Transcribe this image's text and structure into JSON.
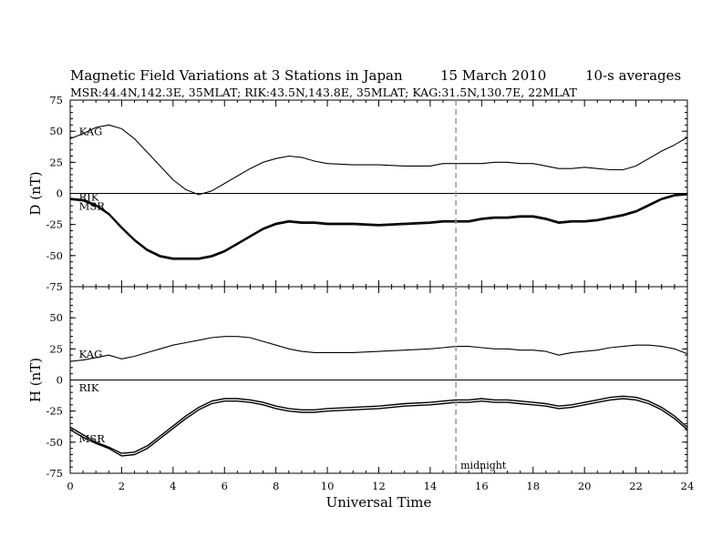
{
  "title": {
    "main": "Magnetic Field Variations at 3 Stations in Japan",
    "date": "15 March 2010",
    "averaging": "10-s averages",
    "stations": "MSR:44.4N,142.3E, 35MLAT; RIK:43.5N,143.8E, 35MLAT; KAG:31.5N,130.7E, 22MLAT"
  },
  "annotation": {
    "text": "midnight",
    "x": 15
  },
  "chart_data": [
    {
      "type": "line",
      "panel": "D",
      "ylabel": "D (nT)",
      "xlabel": "",
      "xlim": [
        0,
        24
      ],
      "ylim": [
        -75,
        75
      ],
      "yticks": [
        -75,
        -50,
        -25,
        0,
        25,
        50,
        75
      ],
      "zero_line": true,
      "station_labels": [
        {
          "text": "KAG",
          "x": 0.2,
          "y": 47
        },
        {
          "text": "RIK",
          "x": 0.2,
          "y": -6
        },
        {
          "text": "MSR",
          "x": 0.2,
          "y": -13
        }
      ],
      "series": [
        {
          "name": "KAG",
          "x": [
            0,
            0.5,
            1,
            1.5,
            2,
            2.5,
            3,
            3.5,
            4,
            4.5,
            5,
            5.5,
            6,
            6.5,
            7,
            7.5,
            8,
            8.5,
            9,
            9.5,
            10,
            11,
            12,
            13,
            14,
            14.5,
            15,
            15.5,
            16,
            16.5,
            17,
            17.5,
            18,
            18.5,
            19,
            19.5,
            20,
            20.5,
            21,
            21.5,
            22,
            22.5,
            23,
            23.5,
            24
          ],
          "y": [
            44,
            48,
            53,
            55,
            52,
            44,
            33,
            22,
            11,
            3,
            -1,
            2,
            8,
            14,
            20,
            25,
            28,
            30,
            29,
            26,
            24,
            23,
            23,
            22,
            22,
            24,
            24,
            24,
            24,
            25,
            25,
            24,
            24,
            22,
            20,
            20,
            21,
            20,
            19,
            19,
            22,
            28,
            34,
            39,
            45
          ]
        },
        {
          "name": "RIK",
          "x": [
            0,
            0.5,
            1,
            1.5,
            2,
            2.5,
            3,
            3.5,
            4,
            4.5,
            5,
            5.5,
            6,
            6.5,
            7,
            7.5,
            8,
            8.5,
            9,
            9.5,
            10,
            11,
            12,
            13,
            14,
            14.5,
            15,
            15.5,
            16,
            16.5,
            17,
            17.5,
            18,
            18.5,
            19,
            19.5,
            20,
            20.5,
            21,
            21.5,
            22,
            22.5,
            23,
            23.5,
            24
          ],
          "y": [
            -4,
            -5,
            -9,
            -16,
            -27,
            -37,
            -45,
            -50,
            -52,
            -52,
            -52,
            -50,
            -46,
            -40,
            -34,
            -28,
            -24,
            -22,
            -23,
            -23,
            -24,
            -24,
            -25,
            -24,
            -23,
            -22,
            -22,
            -22,
            -20,
            -19,
            -19,
            -18,
            -18,
            -20,
            -23,
            -22,
            -22,
            -21,
            -19,
            -17,
            -14,
            -9,
            -4,
            -1,
            0
          ]
        },
        {
          "name": "MSR",
          "x": [
            0,
            0.5,
            1,
            1.5,
            2,
            2.5,
            3,
            3.5,
            4,
            4.5,
            5,
            5.5,
            6,
            6.5,
            7,
            7.5,
            8,
            8.5,
            9,
            9.5,
            10,
            11,
            12,
            13,
            14,
            14.5,
            15,
            15.5,
            16,
            16.5,
            17,
            17.5,
            18,
            18.5,
            19,
            19.5,
            20,
            20.5,
            21,
            21.5,
            22,
            22.5,
            23,
            23.5,
            24
          ],
          "y": [
            -5,
            -6,
            -10,
            -17,
            -28,
            -38,
            -46,
            -51,
            -53,
            -53,
            -53,
            -51,
            -47,
            -41,
            -35,
            -29,
            -25,
            -23,
            -24,
            -24,
            -25,
            -25,
            -26,
            -25,
            -24,
            -23,
            -23,
            -23,
            -21,
            -20,
            -20,
            -19,
            -19,
            -21,
            -24,
            -23,
            -23,
            -22,
            -20,
            -18,
            -15,
            -10,
            -5,
            -2,
            -1
          ]
        }
      ]
    },
    {
      "type": "line",
      "panel": "H",
      "ylabel": "H (nT)",
      "xlabel": "Universal Time",
      "xlim": [
        0,
        24
      ],
      "ylim": [
        -75,
        75
      ],
      "yticks": [
        -75,
        -50,
        -25,
        0,
        25,
        50,
        75
      ],
      "xticks": [
        0,
        2,
        4,
        6,
        8,
        10,
        12,
        14,
        16,
        18,
        20,
        22,
        24
      ],
      "zero_line": true,
      "station_labels": [
        {
          "text": "KAG",
          "x": 0.2,
          "y": 18
        },
        {
          "text": "RIK",
          "x": 0.2,
          "y": -9
        },
        {
          "text": "MSR",
          "x": 0.2,
          "y": -50
        }
      ],
      "series": [
        {
          "name": "KAG",
          "x": [
            0,
            0.5,
            1,
            1.5,
            2,
            2.5,
            3,
            3.5,
            4,
            4.5,
            5,
            5.5,
            6,
            6.5,
            7,
            7.5,
            8,
            8.5,
            9,
            9.5,
            10,
            11,
            12,
            13,
            14,
            14.5,
            15,
            15.5,
            16,
            16.5,
            17,
            17.5,
            18,
            18.5,
            19,
            19.5,
            20,
            20.5,
            21,
            21.5,
            22,
            22.5,
            23,
            23.5,
            24
          ],
          "y": [
            15,
            16,
            18,
            20,
            17,
            19,
            22,
            25,
            28,
            30,
            32,
            34,
            35,
            35,
            34,
            31,
            28,
            25,
            23,
            22,
            22,
            22,
            23,
            24,
            25,
            26,
            27,
            27,
            26,
            25,
            25,
            24,
            24,
            23,
            20,
            22,
            23,
            24,
            26,
            27,
            28,
            28,
            27,
            25,
            21
          ]
        },
        {
          "name": "RIK",
          "x": [
            0,
            0.5,
            1,
            1.5,
            2,
            2.5,
            3,
            3.5,
            4,
            4.5,
            5,
            5.5,
            6,
            6.5,
            7,
            7.5,
            8,
            8.5,
            9,
            9.5,
            10,
            11,
            12,
            13,
            14,
            14.5,
            15,
            15.5,
            16,
            16.5,
            17,
            17.5,
            18,
            18.5,
            19,
            19.5,
            20,
            20.5,
            21,
            21.5,
            22,
            22.5,
            23,
            23.5,
            24
          ],
          "y": [
            -38,
            -44,
            -50,
            -54,
            -59,
            -58,
            -53,
            -45,
            -37,
            -29,
            -22,
            -17,
            -15,
            -15,
            -16,
            -18,
            -21,
            -23,
            -24,
            -24,
            -23,
            -22,
            -21,
            -19,
            -18,
            -17,
            -16,
            -16,
            -15,
            -16,
            -16,
            -17,
            -18,
            -19,
            -21,
            -20,
            -18,
            -16,
            -14,
            -13,
            -14,
            -17,
            -22,
            -29,
            -38
          ]
        },
        {
          "name": "MSR",
          "x": [
            0,
            0.5,
            1,
            1.5,
            2,
            2.5,
            3,
            3.5,
            4,
            4.5,
            5,
            5.5,
            6,
            6.5,
            7,
            7.5,
            8,
            8.5,
            9,
            9.5,
            10,
            11,
            12,
            13,
            14,
            14.5,
            15,
            15.5,
            16,
            16.5,
            17,
            17.5,
            18,
            18.5,
            19,
            19.5,
            20,
            20.5,
            21,
            21.5,
            22,
            22.5,
            23,
            23.5,
            24
          ],
          "y": [
            -40,
            -46,
            -51,
            -55,
            -61,
            -60,
            -55,
            -47,
            -39,
            -31,
            -24,
            -19,
            -17,
            -17,
            -18,
            -20,
            -23,
            -25,
            -26,
            -26,
            -25,
            -24,
            -23,
            -21,
            -20,
            -19,
            -18,
            -18,
            -17,
            -18,
            -18,
            -19,
            -20,
            -21,
            -23,
            -22,
            -20,
            -18,
            -16,
            -15,
            -16,
            -19,
            -24,
            -31,
            -40
          ]
        }
      ]
    }
  ]
}
